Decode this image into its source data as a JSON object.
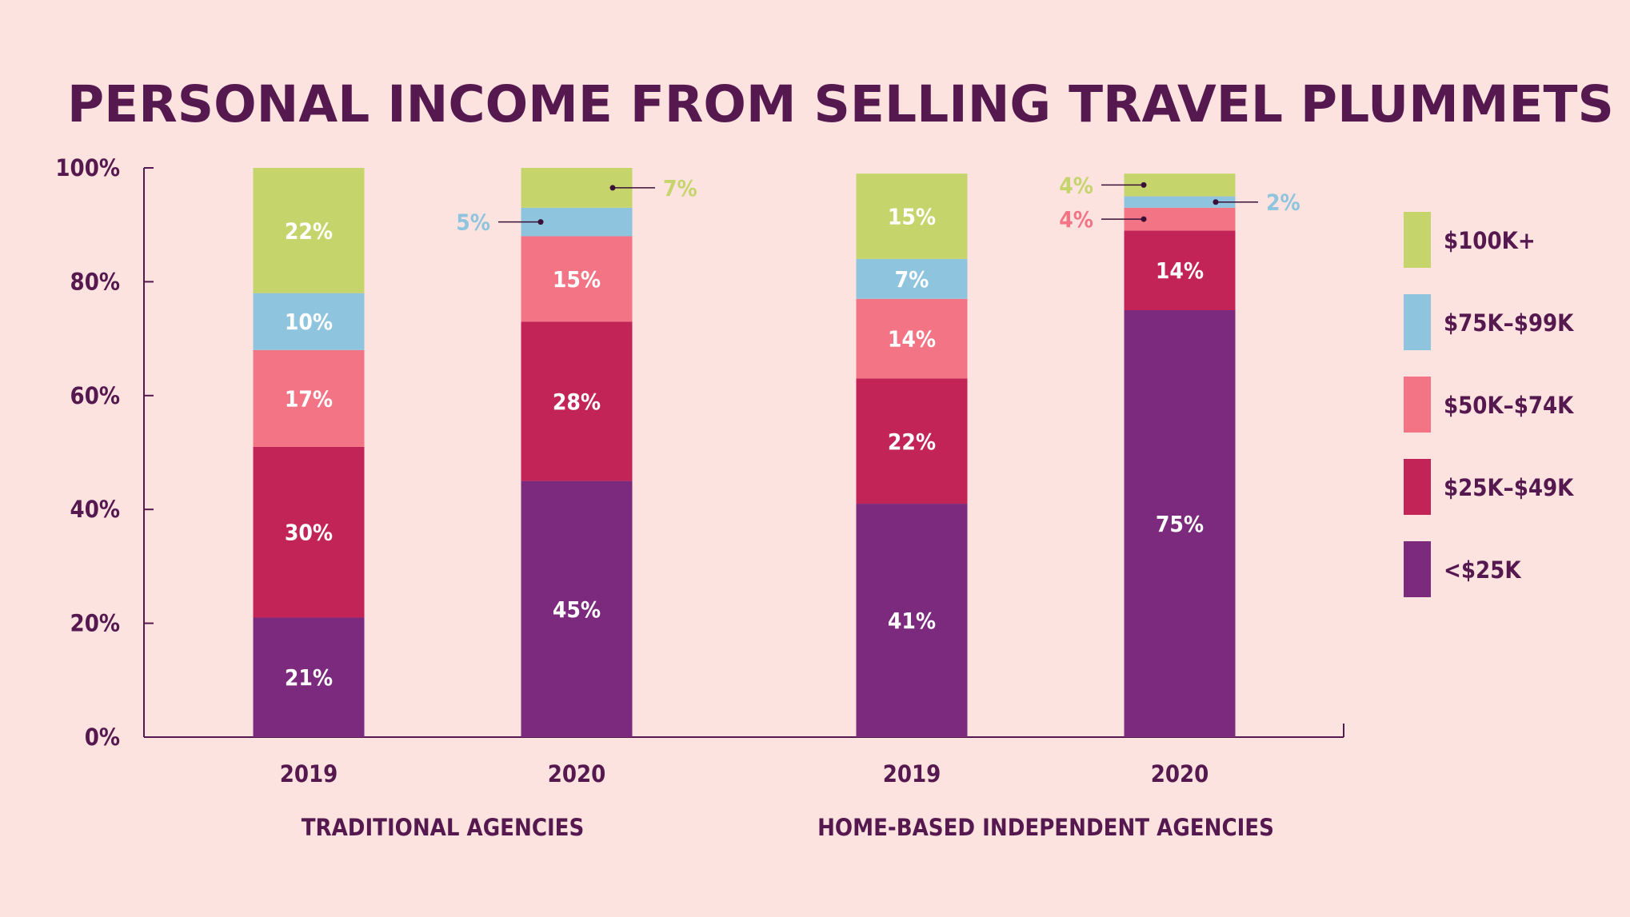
{
  "chart_data": {
    "type": "bar",
    "stacked": true,
    "title": "PERSONAL INCOME FROM SELLING TRAVEL PLUMMETS",
    "ylim": [
      0,
      100
    ],
    "y_ticks": [
      "0%",
      "20%",
      "40%",
      "60%",
      "80%",
      "100%"
    ],
    "grid": false,
    "legend_position": "right",
    "categories": [
      "2019",
      "2020",
      "2019",
      "2020"
    ],
    "groups": [
      {
        "label": "TRADITIONAL AGENCIES",
        "categories": [
          0,
          1
        ]
      },
      {
        "label": "HOME-BASED INDEPENDENT AGENCIES",
        "categories": [
          2,
          3
        ]
      }
    ],
    "series": [
      {
        "name": "<$25K",
        "color": "#7b2a7d",
        "values": [
          21,
          45,
          41,
          75
        ],
        "labels": [
          "21%",
          "45%",
          "41%",
          "75%"
        ]
      },
      {
        "name": "$25K–$49K",
        "color": "#c22458",
        "values": [
          30,
          28,
          22,
          14
        ],
        "labels": [
          "30%",
          "28%",
          "22%",
          "14%"
        ]
      },
      {
        "name": "$50K–$74K",
        "color": "#f27485",
        "values": [
          17,
          15,
          14,
          4
        ],
        "labels": [
          "17%",
          "15%",
          "14%",
          "4%"
        ]
      },
      {
        "name": "$75K–$99K",
        "color": "#8ec4dd",
        "values": [
          10,
          5,
          7,
          2
        ],
        "labels": [
          "10%",
          "5%",
          "7%",
          "2%"
        ]
      },
      {
        "name": "$100K+",
        "color": "#c5d56c",
        "values": [
          22,
          7,
          15,
          4
        ],
        "labels": [
          "22%",
          "7%",
          "15%",
          "4%"
        ]
      }
    ],
    "callouts": [
      {
        "category": 1,
        "series": 4,
        "side": "right"
      },
      {
        "category": 1,
        "series": 3,
        "side": "left"
      },
      {
        "category": 3,
        "series": 4,
        "side": "left"
      },
      {
        "category": 3,
        "series": 3,
        "side": "right"
      },
      {
        "category": 3,
        "series": 2,
        "side": "left"
      }
    ]
  }
}
